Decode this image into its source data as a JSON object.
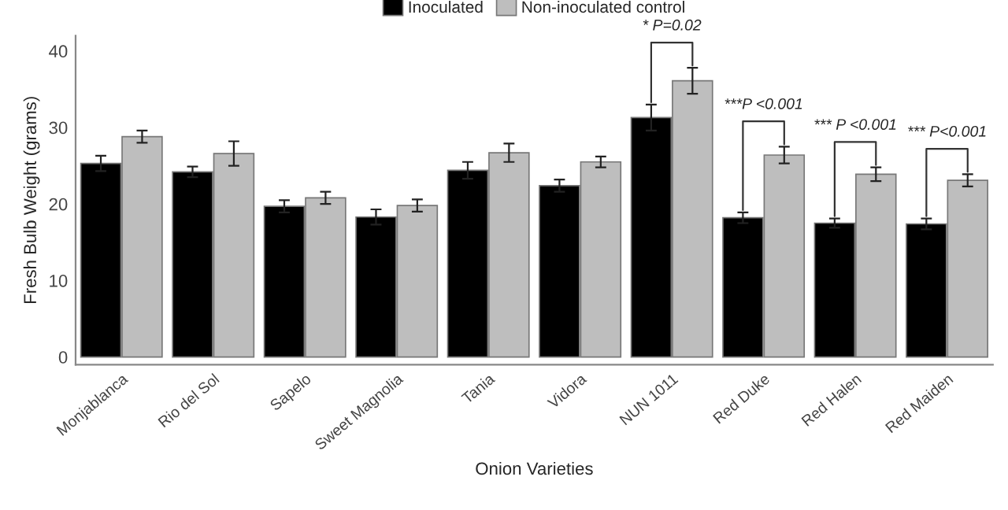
{
  "chart_data": {
    "type": "bar",
    "xlabel": "Onion Varieties",
    "ylabel": "Fresh Bulb Weight (grams)",
    "categories": [
      "Monjablanca",
      "Rio del Sol",
      "Sapelo",
      "Sweet Magnolia",
      "Tania",
      "Vidora",
      "NUN 1011",
      "Red Duke",
      "Red Halen",
      "Red Maiden"
    ],
    "series": [
      {
        "name": "Inoculated",
        "color": "#000000",
        "values": [
          25.3,
          24.2,
          19.7,
          18.3,
          24.4,
          22.4,
          31.3,
          18.2,
          17.5,
          17.4
        ],
        "errors": [
          1.0,
          0.7,
          0.8,
          1.0,
          1.1,
          0.8,
          1.7,
          0.7,
          0.6,
          0.7
        ]
      },
      {
        "name": "Non-inoculated control",
        "color": "#bebebe",
        "values": [
          28.8,
          26.6,
          20.8,
          19.8,
          26.7,
          25.5,
          36.1,
          26.4,
          23.9,
          23.1
        ],
        "errors": [
          0.8,
          1.6,
          0.8,
          0.8,
          1.2,
          0.7,
          1.7,
          1.1,
          0.9,
          0.8
        ]
      }
    ],
    "annotations": [
      "* P=0.02",
      "***P <0.001",
      "*** P <0.001",
      "*** P<0.001"
    ],
    "ylim": [
      -1,
      42
    ],
    "yticks": [
      0,
      10,
      20,
      30,
      40
    ],
    "grid": false,
    "legend": "top"
  }
}
